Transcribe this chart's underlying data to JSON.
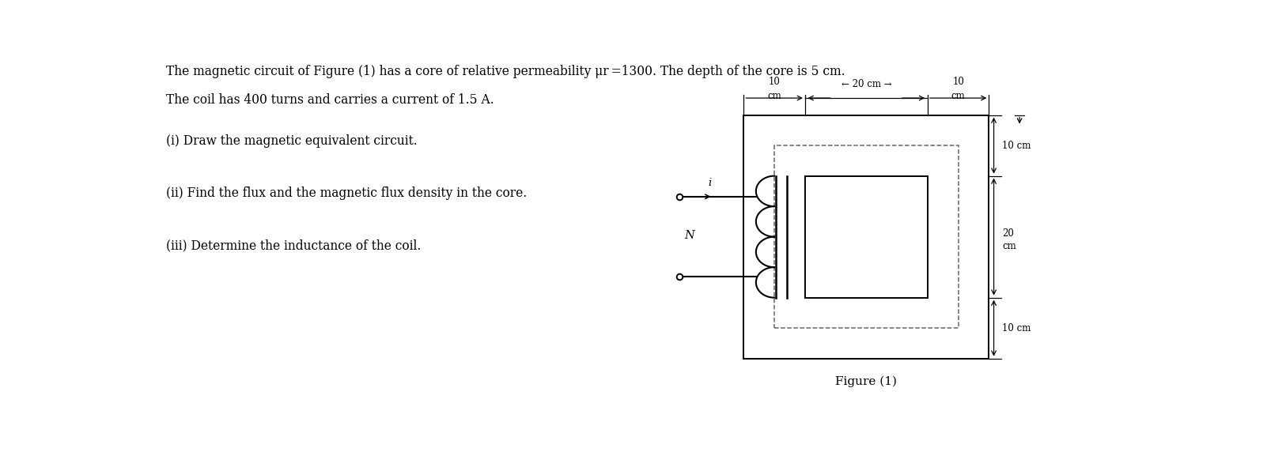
{
  "title_line1": "The magnetic circuit of Figure (1) has a core of relative permeability μr =1300. The depth of the core is 5 cm.",
  "title_line2": "The coil has 400 turns and carries a current of 1.5 A.",
  "question_i": "(i) Draw the magnetic equivalent circuit.",
  "question_ii": "(ii) Find the flux and the magnetic flux density in the core.",
  "question_iii": "(iii) Determine the inductance of the coil.",
  "figure_label": "Figure (1)",
  "label_i": "i",
  "label_N": "N",
  "bg_color": "#ffffff",
  "text_color": "#000000"
}
